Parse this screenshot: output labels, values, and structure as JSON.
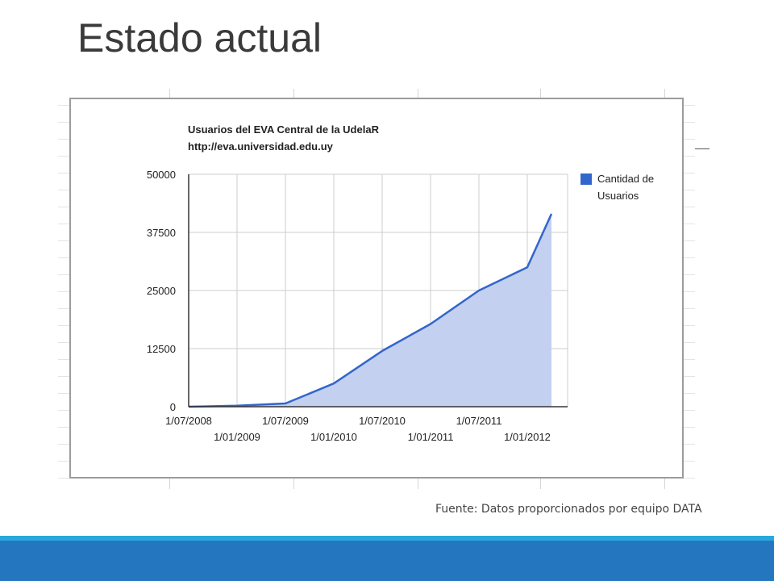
{
  "slide": {
    "title": "Estado actual",
    "source_note": "Fuente: Datos proporcionados por equipo DATA"
  },
  "colors": {
    "line": "#3366cc",
    "area": "#c3d0f0",
    "footer_light": "#2aa7df",
    "footer_dark": "#2477bf"
  },
  "chart_data": {
    "type": "area",
    "title": "Usuarios del EVA Central de la UdelaR",
    "subtitle": "http://eva.universidad.edu.uy",
    "xlabel": "",
    "ylabel": "",
    "ylim": [
      0,
      50000
    ],
    "yticks": [
      "50000",
      "37500",
      "25000",
      "12500",
      "0"
    ],
    "xticks_upper": [
      "1/07/2008",
      "1/07/2009",
      "1/07/2010",
      "1/07/2011"
    ],
    "xticks_lower": [
      "1/01/2009",
      "1/01/2010",
      "1/01/2011",
      "1/01/2012"
    ],
    "grid": true,
    "legend": "right",
    "series": [
      {
        "name": "Cantidad de Usuarios",
        "name_lines": [
          "Cantidad de",
          "Usuarios"
        ],
        "x": [
          "1/07/2008",
          "1/01/2009",
          "1/07/2009",
          "1/01/2010",
          "1/07/2010",
          "1/01/2011",
          "1/07/2011",
          "1/01/2012",
          "1/04/2012"
        ],
        "values": [
          0,
          200,
          700,
          5000,
          12000,
          17800,
          25000,
          30000,
          41500
        ]
      }
    ]
  }
}
